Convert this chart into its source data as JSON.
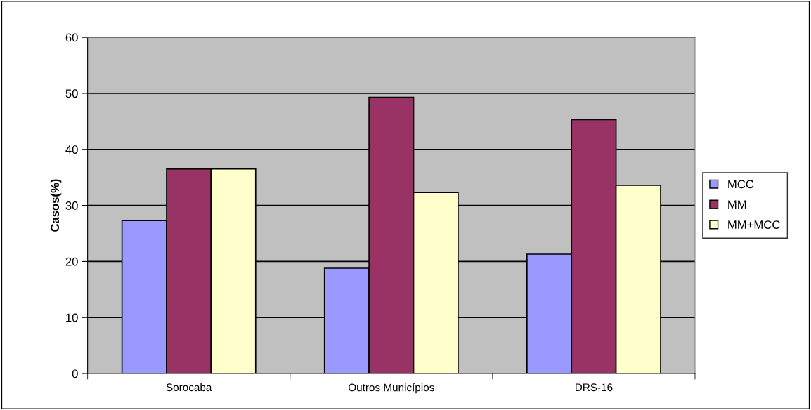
{
  "chart_data": {
    "type": "bar",
    "ylabel": "Casos(%)",
    "categories": [
      "Sorocaba",
      "Outros Municípios",
      "DRS-16"
    ],
    "series": [
      {
        "name": "MCC",
        "color": "#9999ff",
        "values": [
          27.3,
          18.8,
          21.3
        ]
      },
      {
        "name": "MM",
        "color": "#993366",
        "values": [
          36.5,
          49.3,
          45.3
        ]
      },
      {
        "name": "MM+MCC",
        "color": "#ffffcc",
        "values": [
          36.5,
          32.3,
          33.6
        ]
      }
    ],
    "ylim": [
      0,
      60
    ],
    "yticks": [
      0,
      10,
      20,
      30,
      40,
      50,
      60
    ],
    "grid": "y",
    "legend": "right"
  }
}
